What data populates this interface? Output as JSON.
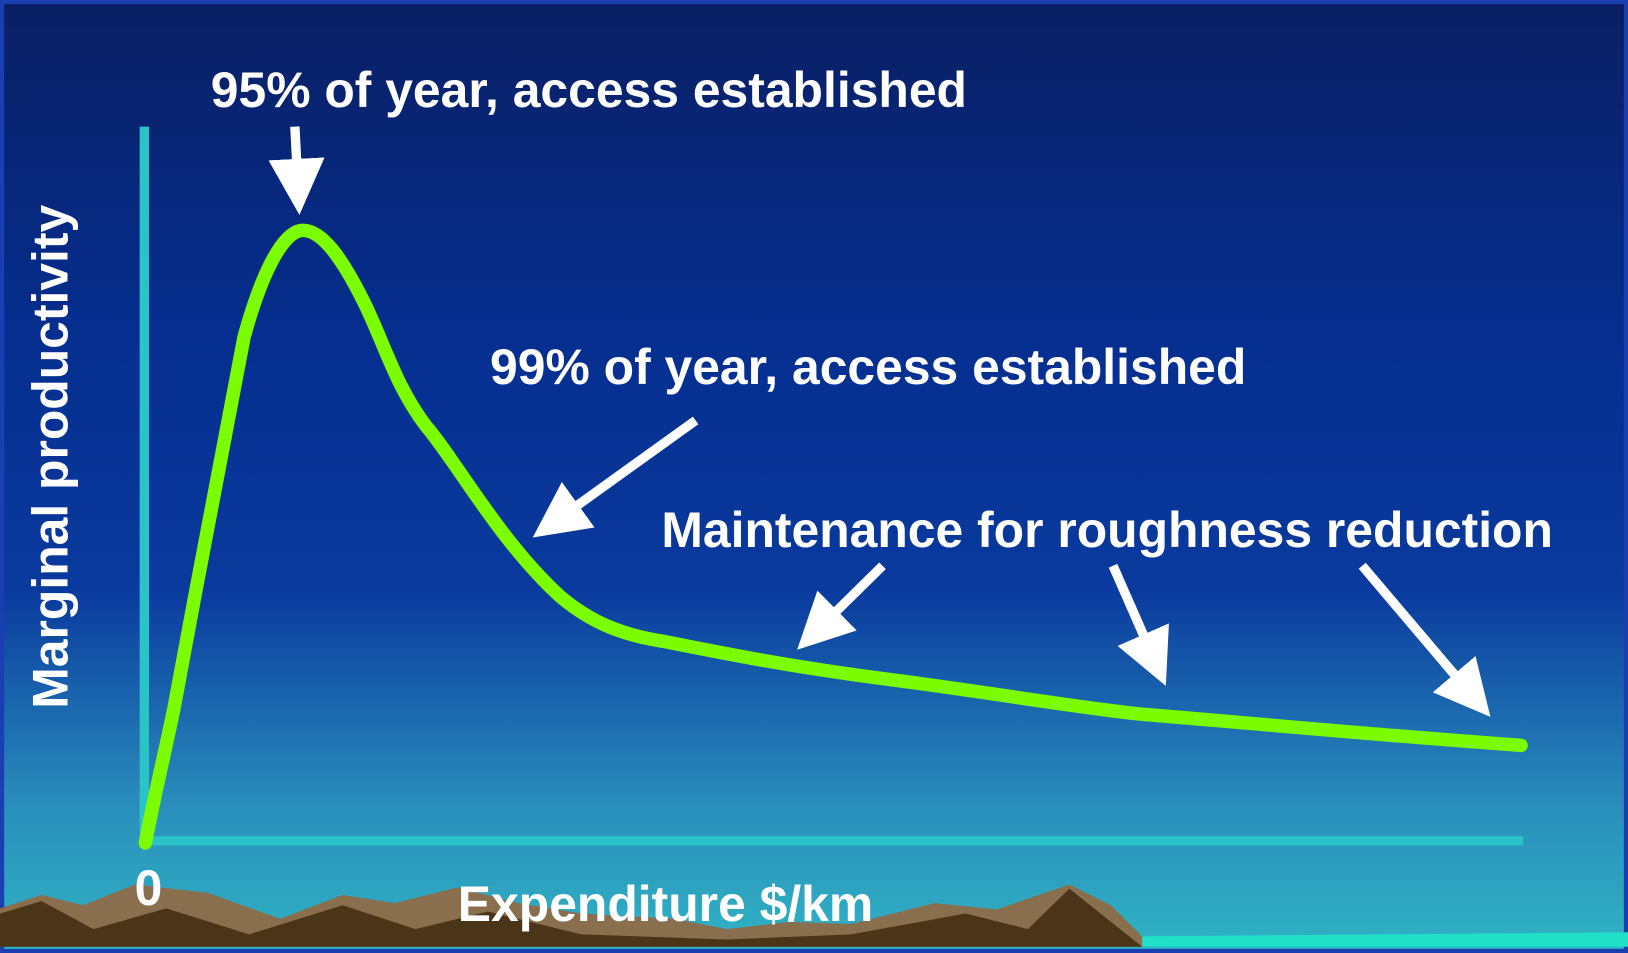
{
  "axes": {
    "y_label": "Marginal productivity",
    "x_label": "Expenditure $/km",
    "origin_label": "0"
  },
  "annotations": [
    "95% of year, access established",
    "99% of year, access established",
    "Maintenance for roughness reduction"
  ]
}
